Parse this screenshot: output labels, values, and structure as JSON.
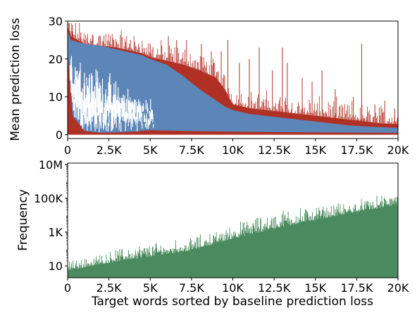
{
  "chart_data": [
    {
      "type": "area",
      "title": "",
      "xlabel": "",
      "ylabel": "Mean prediction loss",
      "xlim": [
        0,
        20000
      ],
      "ylim": [
        -1,
        30
      ],
      "xticks": [
        0,
        2500,
        5000,
        7500,
        10000,
        12500,
        15000,
        17500,
        20000
      ],
      "xtick_labels": [
        "0",
        "2.5K",
        "5K",
        "7.5K",
        "10K",
        "12.5K",
        "15K",
        "17.5K",
        "20K"
      ],
      "yticks": [
        0,
        10,
        20,
        30
      ],
      "ytick_labels": [
        "0",
        "10",
        "20",
        "30"
      ],
      "grid": false,
      "series": [
        {
          "role": "upper",
          "color": "#b03024",
          "x": [
            0,
            200,
            1000,
            2000,
            3000,
            3500,
            4000,
            4500,
            5000,
            6000,
            7000,
            8000,
            9000,
            9500,
            10000,
            11000,
            12000,
            13000,
            14000,
            15000,
            16000,
            17000,
            18000,
            19000,
            20000
          ],
          "y": [
            28.5,
            26,
            24,
            23.5,
            23,
            22.5,
            22,
            21.5,
            20.5,
            19.5,
            18.5,
            17,
            15,
            12,
            8,
            7,
            6.5,
            6,
            5.5,
            5,
            4.5,
            4,
            3.5,
            3,
            2.8
          ],
          "spikes": [
            [
              300,
              29
            ],
            [
              800,
              27
            ],
            [
              1500,
              26.5
            ],
            [
              2800,
              25
            ],
            [
              3800,
              25
            ],
            [
              4300,
              24
            ],
            [
              5000,
              24
            ],
            [
              5700,
              23.5
            ],
            [
              6100,
              26
            ],
            [
              6600,
              25
            ],
            [
              7200,
              25
            ],
            [
              8100,
              24
            ],
            [
              8700,
              22
            ],
            [
              9300,
              22
            ],
            [
              9700,
              25
            ],
            [
              10400,
              19
            ],
            [
              11000,
              20
            ],
            [
              11600,
              23
            ],
            [
              12400,
              17
            ],
            [
              13000,
              23
            ],
            [
              13300,
              19
            ],
            [
              14200,
              15
            ],
            [
              14800,
              14
            ],
            [
              15400,
              17
            ],
            [
              16200,
              12
            ],
            [
              17300,
              10
            ],
            [
              17800,
              24
            ],
            [
              18600,
              8
            ],
            [
              19200,
              9
            ],
            [
              19800,
              7
            ]
          ]
        },
        {
          "role": "lower",
          "color": "#5b86b7",
          "x": [
            0,
            200,
            1000,
            2000,
            3000,
            3500,
            4000,
            4500,
            5000,
            6000,
            7000,
            8000,
            9000,
            9500,
            10000,
            11000,
            12000,
            13000,
            14000,
            15000,
            16000,
            17000,
            18000,
            19000,
            20000
          ],
          "y": [
            27.5,
            25,
            24,
            23.5,
            22.5,
            22,
            21.5,
            21,
            20,
            18.5,
            15.5,
            12,
            9,
            7.5,
            6.5,
            5.5,
            5,
            4.5,
            4,
            3.5,
            3,
            2.5,
            2.2,
            2,
            1.8
          ],
          "baseline": [
            [
              0,
              22
            ],
            [
              300,
              5
            ],
            [
              1000,
              1
            ],
            [
              2000,
              0.5
            ],
            [
              3000,
              0.6
            ],
            [
              4000,
              0.8
            ],
            [
              5000,
              1.2
            ],
            [
              7000,
              1
            ],
            [
              10000,
              0.8
            ],
            [
              15000,
              0.6
            ],
            [
              20000,
              0.5
            ]
          ]
        }
      ]
    },
    {
      "type": "bar",
      "title": "",
      "xlabel": "Target words sorted by baseline prediction loss",
      "ylabel": "Frequency",
      "yscale": "log",
      "color": "#4b8a5e",
      "xlim": [
        0,
        20000
      ],
      "ylim": [
        2,
        12000000
      ],
      "xticks": [
        0,
        2500,
        5000,
        7500,
        10000,
        12500,
        15000,
        17500,
        20000
      ],
      "xtick_labels": [
        "0",
        "2.5K",
        "5K",
        "7.5K",
        "10K",
        "12.5K",
        "15K",
        "17.5K",
        "20K"
      ],
      "yticks": [
        10,
        1000,
        100000,
        10000000
      ],
      "ytick_labels": [
        "10",
        "1K",
        "100K",
        "10M"
      ],
      "grid": false,
      "x": [
        0,
        1000,
        2500,
        5000,
        7500,
        10000,
        12500,
        15000,
        17500,
        20000
      ],
      "y": [
        5,
        8,
        15,
        35,
        80,
        400,
        1500,
        5000,
        15000,
        40000
      ],
      "peaks": [
        [
          500,
          30
        ],
        [
          2000,
          60
        ],
        [
          3500,
          200
        ],
        [
          7000,
          500
        ],
        [
          9000,
          1500
        ],
        [
          12000,
          20000
        ],
        [
          13500,
          40000
        ],
        [
          15500,
          50000
        ],
        [
          17000,
          80000
        ],
        [
          18700,
          150000
        ],
        [
          19900,
          400000
        ]
      ]
    }
  ]
}
